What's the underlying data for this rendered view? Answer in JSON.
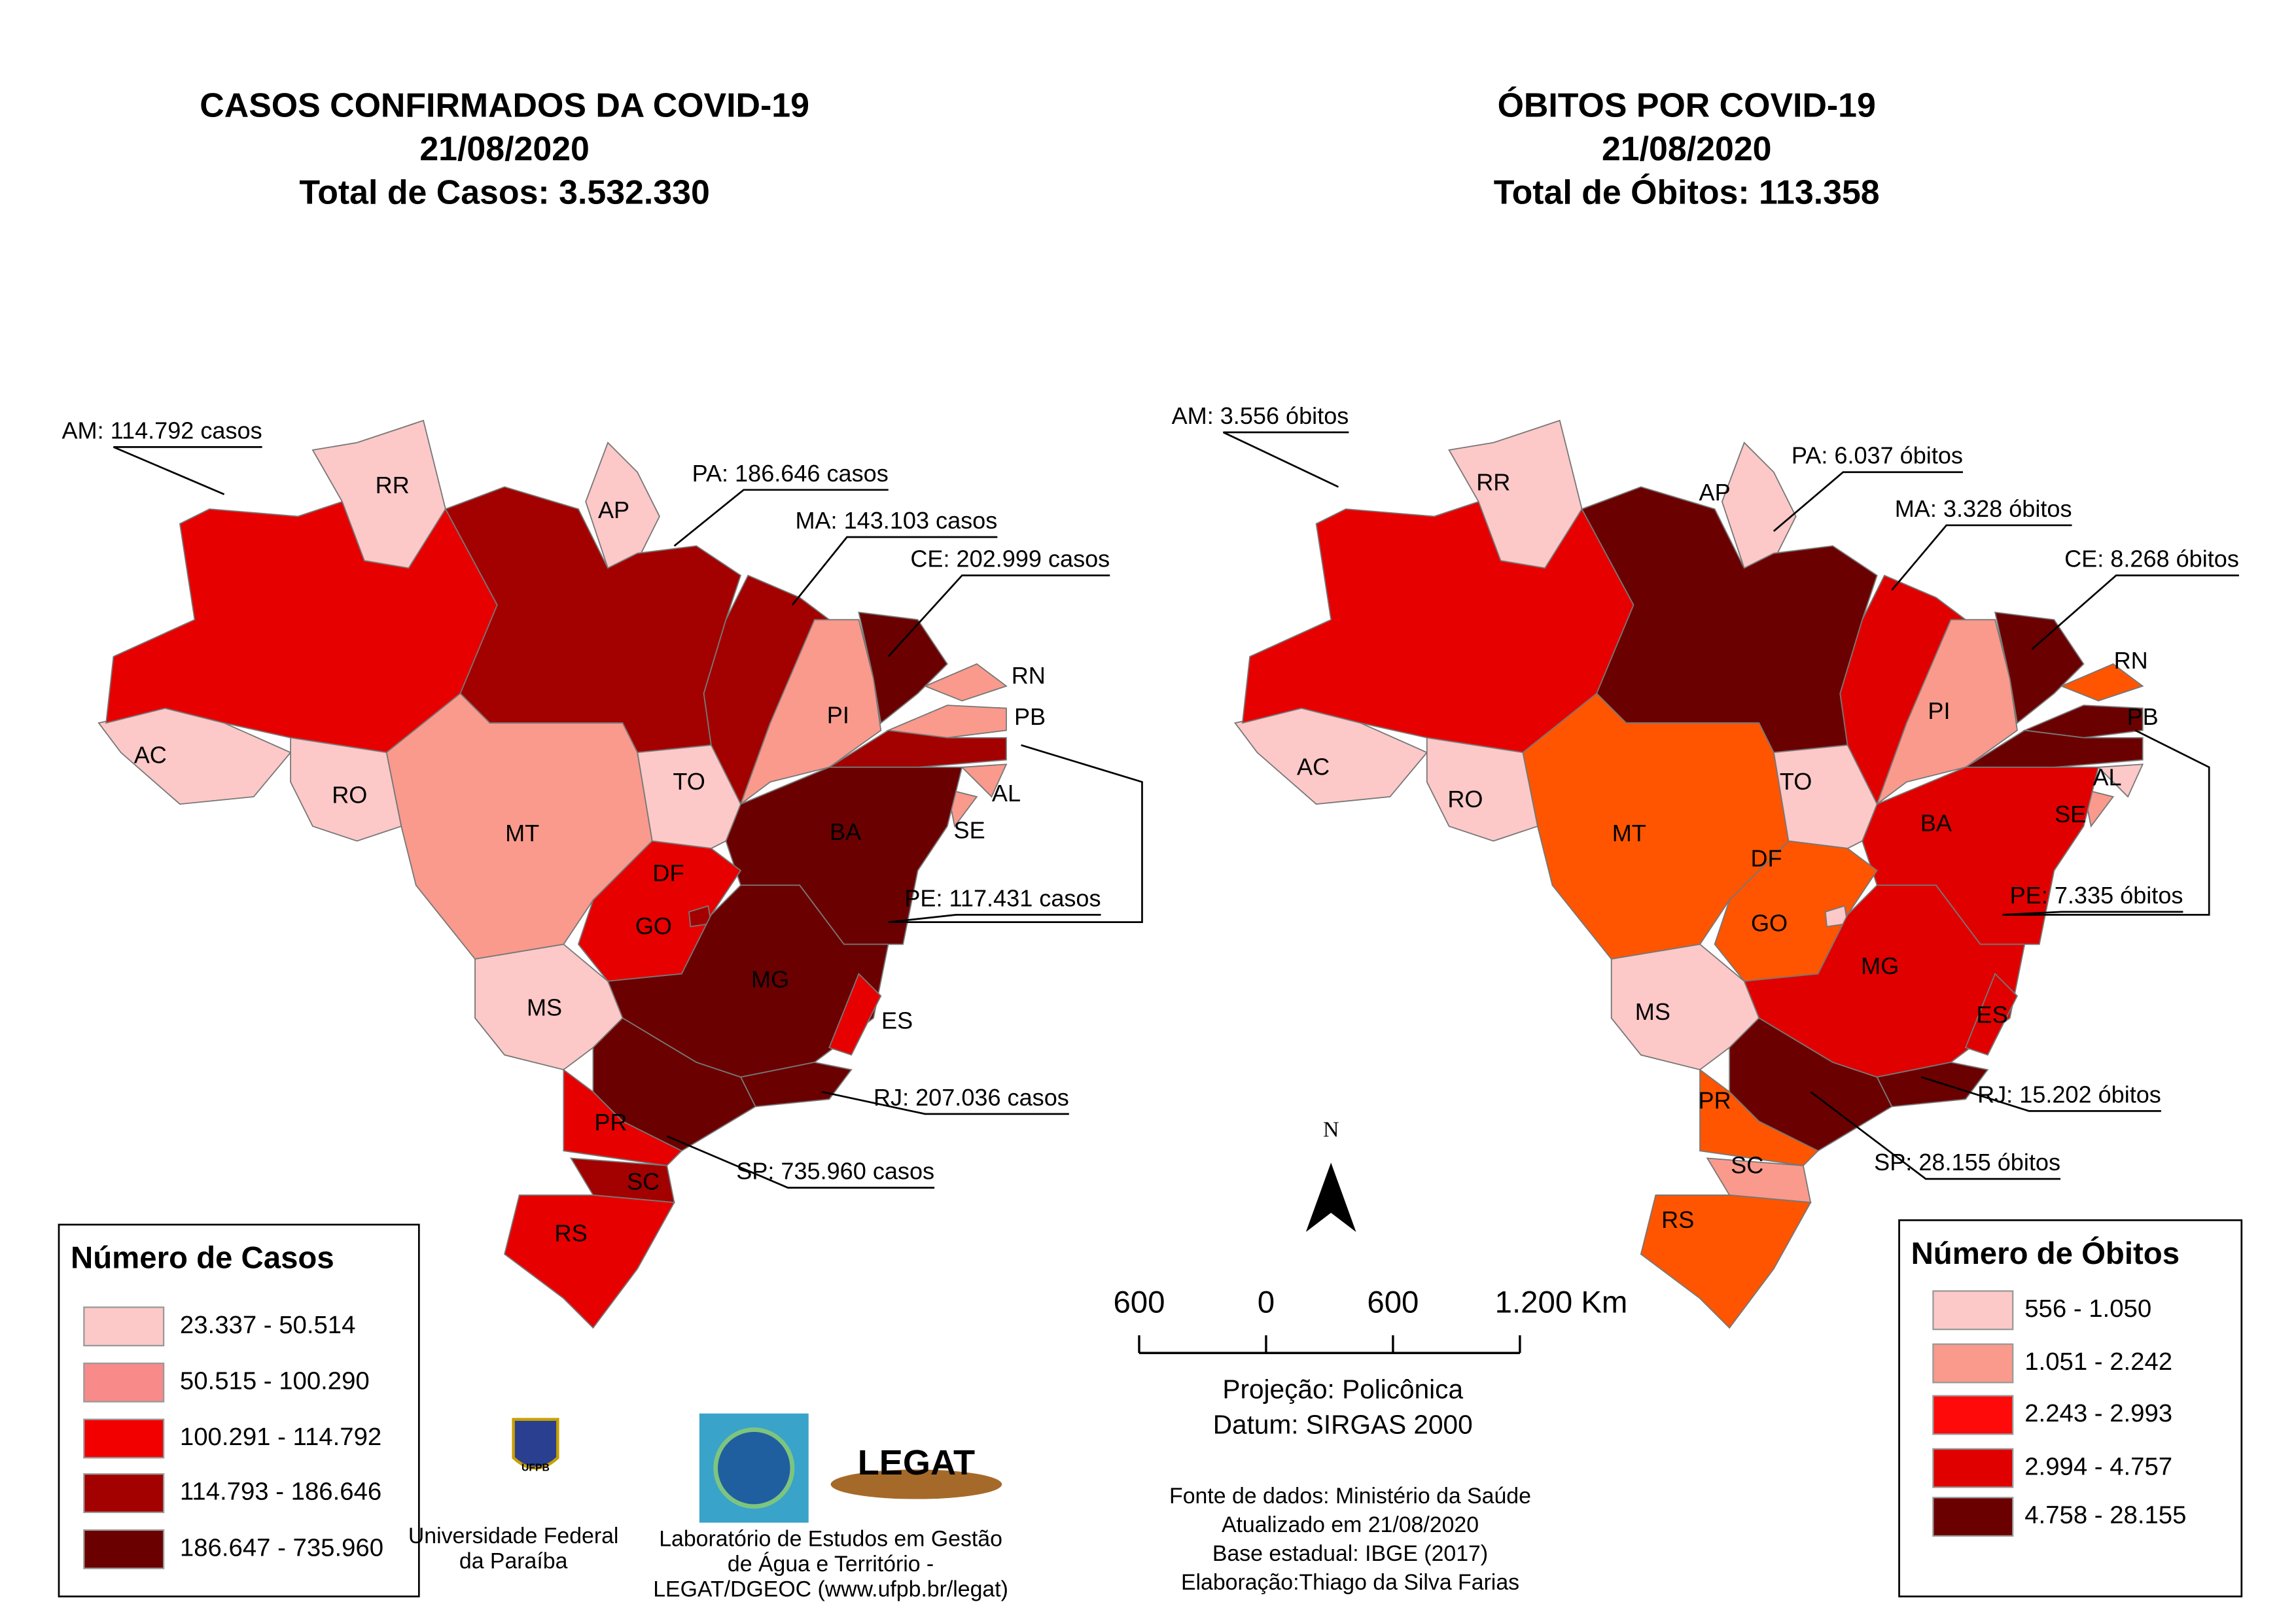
{
  "maps": [
    {
      "title": [
        "CASOS CONFIRMADOS DA COVID-19",
        "21/08/2020",
        "Total de Casos: 3.532.330"
      ],
      "states": [
        {
          "label": "AC",
          "color": "#fcc8c8"
        },
        {
          "color": "#e60000"
        },
        {
          "label": "RR",
          "color": "#fcc8c8"
        },
        {
          "label": "AP",
          "color": "#fcc8c8"
        },
        {
          "color": "#a30000"
        },
        {
          "color": "#a30000"
        },
        {
          "label": "PI",
          "color": "#f99a8c"
        },
        {
          "color": "#6b0000"
        },
        {
          "label": "RN",
          "color": "#f99a8c"
        },
        {
          "label": "PB",
          "color": "#f99a8c"
        },
        {
          "color": "#a30000"
        },
        {
          "label": "AL",
          "color": "#f99a8c"
        },
        {
          "label": "SE",
          "color": "#f99a8c"
        },
        {
          "label": "BA",
          "color": "#6b0000"
        },
        {
          "label": "TO",
          "color": "#fcc8c8"
        },
        {
          "label": "MT",
          "color": "#f99a8c"
        },
        {
          "label": "RO",
          "color": "#fcc8c8"
        },
        {
          "label": "GO",
          "color": "#e60000"
        },
        {
          "label": "DF",
          "color": "#a30000"
        },
        {
          "label": "MG",
          "color": "#6b0000"
        },
        {
          "label": "ES",
          "color": "#e60000"
        },
        {
          "label": "MS",
          "color": "#fcc8c8"
        },
        {
          "color": "#6b0000"
        },
        {
          "color": "#6b0000"
        },
        {
          "label": "PR",
          "color": "#e60000"
        },
        {
          "label": "SC",
          "color": "#a30000"
        },
        {
          "label": "RS",
          "color": "#e60000"
        }
      ],
      "callouts": [
        "AM: 114.792 casos",
        "PA: 186.646 casos",
        "MA: 143.103 casos",
        "CE: 202.999 casos",
        "PE: 117.431 casos",
        "RJ: 207.036 casos",
        "SP: 735.960 casos"
      ],
      "legend": {
        "title": "Número de Casos",
        "items": [
          {
            "label": "23.337 - 50.514",
            "color": "#fcc8c8"
          },
          {
            "label": "50.515 - 100.290",
            "color": "#f98a8a"
          },
          {
            "label": "100.291 - 114.792",
            "color": "#f20000"
          },
          {
            "label": "114.793 - 186.646",
            "color": "#a30000"
          },
          {
            "label": "186.647 - 735.960",
            "color": "#6b0000"
          }
        ]
      }
    },
    {
      "title": [
        "ÓBITOS POR COVID-19",
        "21/08/2020",
        "Total de Óbitos: 113.358"
      ],
      "states": [
        {
          "label": "AC",
          "color": "#fcc8c8"
        },
        {
          "color": "#e60000"
        },
        {
          "label": "RR",
          "color": "#fcc8c8"
        },
        {
          "label": "AP",
          "color": "#fcc8c8"
        },
        {
          "color": "#6b0000"
        },
        {
          "color": "#e00000"
        },
        {
          "label": "PI",
          "color": "#f99a8c"
        },
        {
          "color": "#6b0000"
        },
        {
          "label": "RN",
          "color": "#ff5500"
        },
        {
          "label": "PB",
          "color": "#6b0000"
        },
        {
          "color": "#6b0000"
        },
        {
          "label": "AL",
          "color": "#fcc8c8"
        },
        {
          "label": "SE",
          "color": "#f99a8c"
        },
        {
          "label": "BA",
          "color": "#e00000"
        },
        {
          "label": "TO",
          "color": "#fcc8c8"
        },
        {
          "label": "MT",
          "color": "#ff5500"
        },
        {
          "label": "RO",
          "color": "#fcc8c8"
        },
        {
          "label": "GO",
          "color": "#ff5500"
        },
        {
          "label": "DF",
          "color": "#fcc8c8"
        },
        {
          "label": "MG",
          "color": "#e00000"
        },
        {
          "label": "ES",
          "color": "#e00000"
        },
        {
          "label": "MS",
          "color": "#fcc8c8"
        },
        {
          "color": "#6b0000"
        },
        {
          "color": "#6b0000"
        },
        {
          "label": "PR",
          "color": "#ff5500"
        },
        {
          "label": "SC",
          "color": "#f99a8c"
        },
        {
          "label": "RS",
          "color": "#ff5500"
        }
      ],
      "callouts": [
        "AM: 3.556 óbitos",
        "PA: 6.037 óbitos",
        "MA: 3.328 óbitos",
        "CE: 8.268 óbitos",
        "PE: 7.335 óbitos",
        "RJ: 15.202 óbitos",
        "SP: 28.155 óbitos"
      ],
      "legend": {
        "title": "Número de Óbitos",
        "items": [
          {
            "label": "556 - 1.050",
            "color": "#fcc8c8"
          },
          {
            "label": "1.051 - 2.242",
            "color": "#f99a8c"
          },
          {
            "label": "2.243 - 2.993",
            "color": "#ff0a0a"
          },
          {
            "label": "2.994 - 4.757",
            "color": "#e00000"
          },
          {
            "label": "4.758 - 28.155",
            "color": "#6b0000"
          }
        ]
      }
    }
  ],
  "north": "N",
  "scale": {
    "labels": [
      "600",
      "0",
      "600",
      "1.200 Km"
    ],
    "projection": [
      "Projeção: Policônica",
      "Datum: SIRGAS 2000"
    ]
  },
  "source": [
    "Fonte de dados: Ministério da Saúde",
    "Atualizado em 21/08/2020",
    "Base estadual: IBGE (2017)",
    "Elaboração:Thiago da Silva Farias"
  ],
  "ufpb": {
    "logo": "UFPB",
    "lines": [
      "Universidade Federal",
      "da Paraíba"
    ]
  },
  "legat": {
    "logo": "LEGAT",
    "lines": [
      "Laboratório de Estudos em Gestão",
      "de Água e Território -",
      "LEGAT/DGEOC (www.ufpb.br/legat)"
    ]
  }
}
